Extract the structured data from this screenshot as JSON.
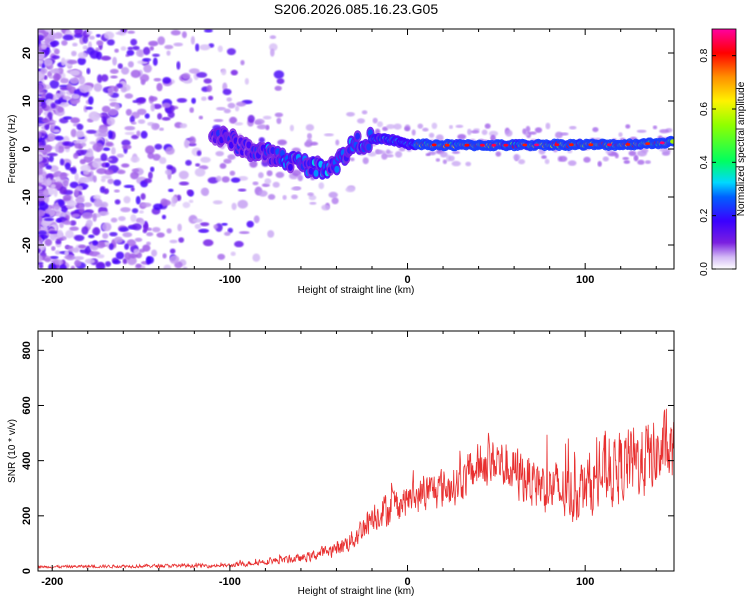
{
  "title": "S206.2026.085.16.23.G05",
  "chart_data": [
    {
      "type": "heatmap",
      "name": "spectrogram",
      "xlabel": "Height of straight line (km)",
      "ylabel": "Frequency (Hz)",
      "xlim": [
        -208,
        150
      ],
      "ylim": [
        -25,
        25
      ],
      "xticks": [
        -200,
        -100,
        0,
        100
      ],
      "yticks": [
        -20,
        -10,
        0,
        10,
        20
      ],
      "colorbar": {
        "label": "Normalized spectral amplitude",
        "range": [
          0,
          0.9
        ],
        "ticks": [
          0.0,
          0.2,
          0.4,
          0.6,
          0.8
        ]
      },
      "ridge": {
        "description": "dominant frequency trace",
        "x": [
          -110,
          -100,
          -90,
          -80,
          -70,
          -60,
          -50,
          -40,
          -30,
          -20,
          -10,
          0,
          20,
          40,
          60,
          80,
          100,
          120,
          140,
          150
        ],
        "y": [
          3,
          2,
          0,
          -1,
          -2,
          -3,
          -4,
          -3,
          1,
          2,
          2,
          1,
          0.8,
          0.8,
          0.8,
          0.9,
          0.9,
          0.9,
          1.2,
          1.5
        ]
      }
    },
    {
      "type": "line",
      "name": "snr",
      "xlabel": "Height of straight line (km)",
      "ylabel": "SNR (10 * v/v)",
      "xlim": [
        -208,
        150
      ],
      "ylim": [
        0,
        870
      ],
      "xticks": [
        -200,
        -100,
        0,
        100
      ],
      "yticks": [
        0,
        200,
        400,
        600,
        800
      ],
      "color": "#e83030",
      "envelope_x": [
        -208,
        -150,
        -100,
        -80,
        -60,
        -40,
        -30,
        -20,
        -10,
        0,
        10,
        20,
        30,
        40,
        50,
        60,
        70,
        80,
        90,
        100,
        110,
        120,
        130,
        140,
        150
      ],
      "envelope_mean": [
        15,
        18,
        20,
        35,
        45,
        80,
        120,
        200,
        230,
        260,
        280,
        300,
        320,
        380,
        400,
        360,
        330,
        300,
        280,
        300,
        350,
        380,
        400,
        420,
        430
      ],
      "envelope_amp": [
        8,
        10,
        12,
        20,
        25,
        45,
        70,
        90,
        110,
        100,
        110,
        120,
        120,
        140,
        160,
        160,
        160,
        170,
        180,
        190,
        210,
        220,
        230,
        230,
        220
      ]
    }
  ]
}
